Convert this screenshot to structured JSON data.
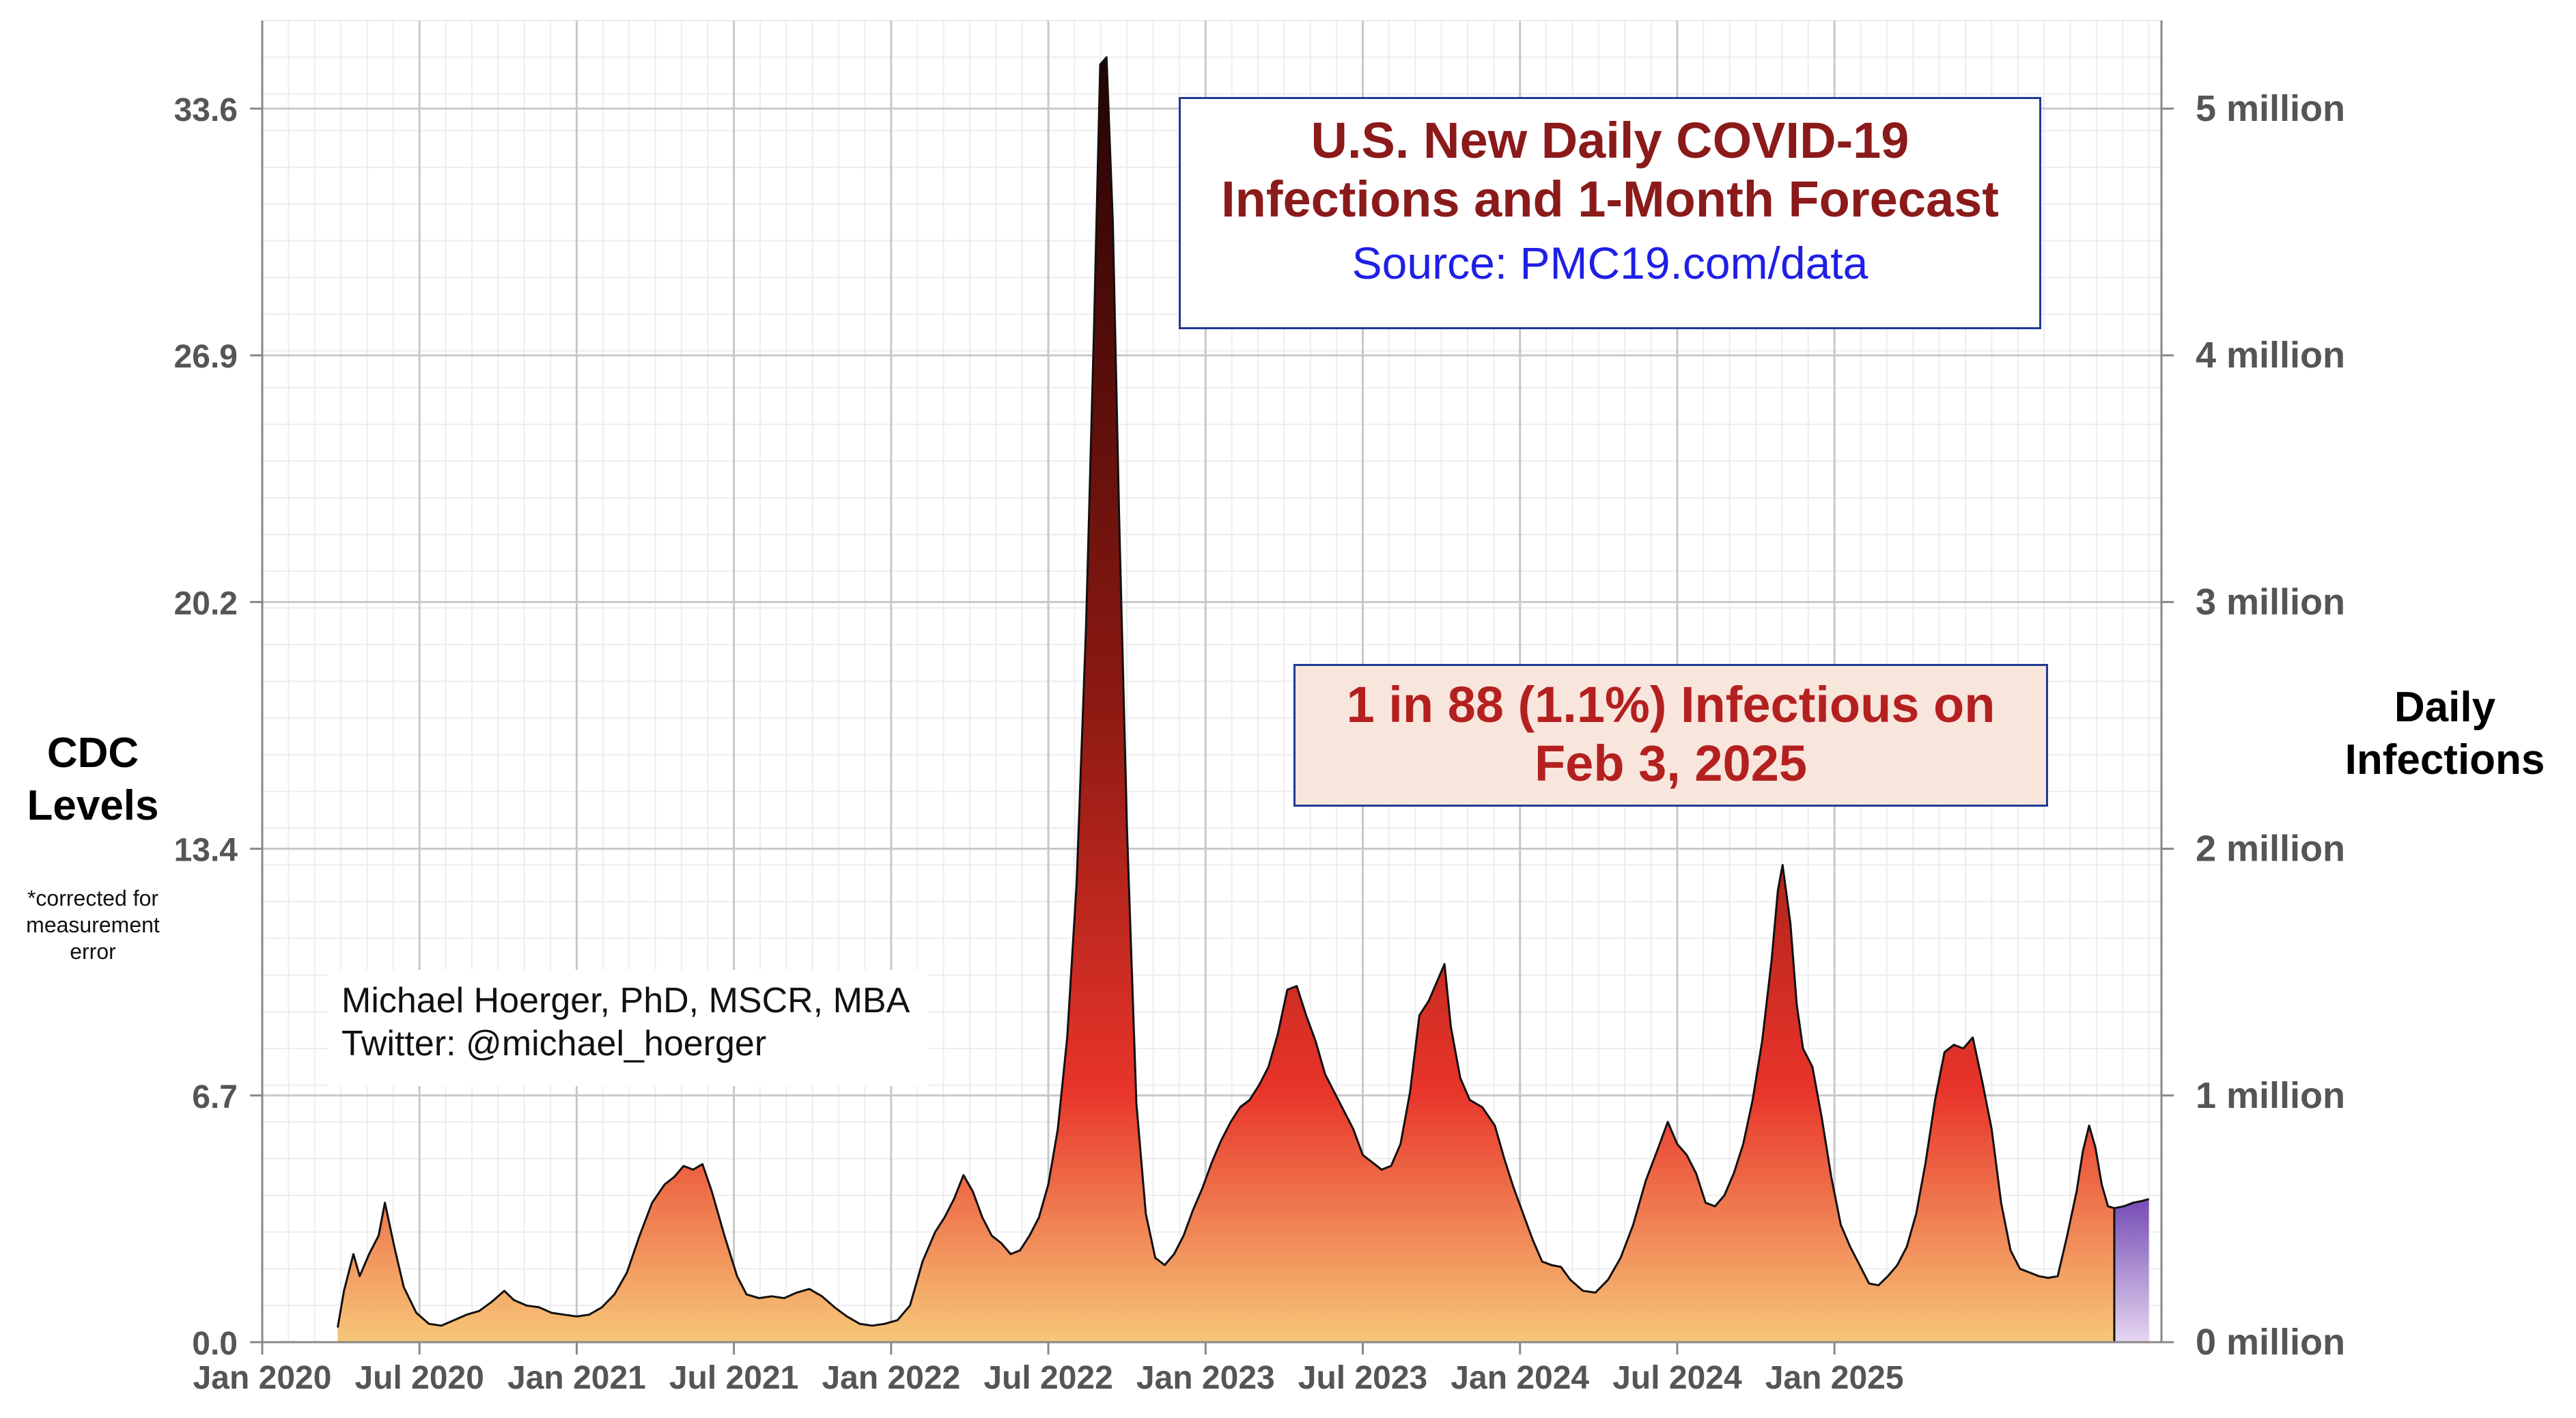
{
  "title": {
    "line1": "U.S. New Daily COVID-19",
    "line2": "Infections and 1-Month Forecast",
    "source": "Source: PMC19.com/data"
  },
  "callout": {
    "line1": "1 in 88 (1.1%) Infectious on",
    "line2": "Feb 3, 2025"
  },
  "author": {
    "name": "Michael Hoerger, PhD, MSCR, MBA",
    "twitter": "Twitter: @michael_hoerger"
  },
  "axes": {
    "left_label_line1": "CDC",
    "left_label_line2": "Levels",
    "left_note_line1": "*corrected for",
    "left_note_line2": "measurement",
    "left_note_line3": "error",
    "right_label_line1": "Daily",
    "right_label_line2": "Infections"
  },
  "colors": {
    "fill_top": "#2a0303",
    "fill_mid": "#e8342a",
    "fill_bottom": "#f7c778",
    "forecast_top": "#7a52b8",
    "forecast_bottom": "#e6d6f0",
    "box_border": "#1f3a93",
    "title_color": "#8b1a1a",
    "source_color": "#1f1fe6",
    "callout_bg": "#f8e5dc",
    "callout_text": "#b42020"
  },
  "chart_data": {
    "type": "area",
    "xlabel": "",
    "ylabel": "CDC Levels",
    "y2label": "Daily Infections",
    "x_ticks": [
      "Jan 2020",
      "Jul 2020",
      "Jan 2021",
      "Jul 2021",
      "Jan 2022",
      "Jul 2022",
      "Jan 2023",
      "Jul 2023",
      "Jan 2024",
      "Jul 2024",
      "Jan 2025"
    ],
    "y_ticks": [
      "0.0",
      "6.7",
      "13.4",
      "20.2",
      "26.9",
      "33.6"
    ],
    "y2_ticks": [
      "0 million",
      "1 million",
      "2 million",
      "3 million",
      "4 million",
      "5 million"
    ],
    "ylim": [
      0,
      36
    ],
    "y2lim": [
      0,
      5360000
    ],
    "grid": true,
    "x_unit": "years since Jan 2020",
    "series": [
      {
        "name": "Observed",
        "points": [
          [
            0.24,
            0.4
          ],
          [
            0.26,
            1.4
          ],
          [
            0.29,
            2.4
          ],
          [
            0.31,
            1.8
          ],
          [
            0.34,
            2.4
          ],
          [
            0.37,
            2.9
          ],
          [
            0.39,
            3.8
          ],
          [
            0.42,
            2.6
          ],
          [
            0.45,
            1.5
          ],
          [
            0.49,
            0.8
          ],
          [
            0.53,
            0.5
          ],
          [
            0.57,
            0.45
          ],
          [
            0.61,
            0.6
          ],
          [
            0.65,
            0.75
          ],
          [
            0.69,
            0.85
          ],
          [
            0.73,
            1.1
          ],
          [
            0.77,
            1.4
          ],
          [
            0.8,
            1.15
          ],
          [
            0.84,
            1.0
          ],
          [
            0.88,
            0.95
          ],
          [
            0.92,
            0.8
          ],
          [
            0.96,
            0.75
          ],
          [
            1.0,
            0.7
          ],
          [
            1.04,
            0.75
          ],
          [
            1.08,
            0.95
          ],
          [
            1.12,
            1.3
          ],
          [
            1.16,
            1.9
          ],
          [
            1.2,
            2.9
          ],
          [
            1.24,
            3.8
          ],
          [
            1.28,
            4.3
          ],
          [
            1.31,
            4.5
          ],
          [
            1.34,
            4.8
          ],
          [
            1.37,
            4.7
          ],
          [
            1.4,
            4.85
          ],
          [
            1.43,
            4.1
          ],
          [
            1.47,
            2.9
          ],
          [
            1.51,
            1.8
          ],
          [
            1.54,
            1.3
          ],
          [
            1.58,
            1.2
          ],
          [
            1.62,
            1.25
          ],
          [
            1.66,
            1.2
          ],
          [
            1.7,
            1.35
          ],
          [
            1.74,
            1.45
          ],
          [
            1.78,
            1.25
          ],
          [
            1.82,
            0.95
          ],
          [
            1.86,
            0.7
          ],
          [
            1.9,
            0.5
          ],
          [
            1.94,
            0.45
          ],
          [
            1.98,
            0.5
          ],
          [
            2.02,
            0.6
          ],
          [
            2.06,
            1.0
          ],
          [
            2.1,
            2.2
          ],
          [
            2.14,
            3.0
          ],
          [
            2.17,
            3.4
          ],
          [
            2.2,
            3.9
          ],
          [
            2.23,
            4.55
          ],
          [
            2.26,
            4.1
          ],
          [
            2.29,
            3.4
          ],
          [
            2.32,
            2.9
          ],
          [
            2.35,
            2.7
          ],
          [
            2.38,
            2.4
          ],
          [
            2.41,
            2.5
          ],
          [
            2.44,
            2.9
          ],
          [
            2.47,
            3.4
          ],
          [
            2.5,
            4.3
          ],
          [
            2.53,
            5.8
          ],
          [
            2.56,
            8.3
          ],
          [
            2.59,
            12.5
          ],
          [
            2.62,
            19.5
          ],
          [
            2.645,
            27.5
          ],
          [
            2.665,
            34.8
          ],
          [
            2.685,
            35.0
          ],
          [
            2.705,
            30.5
          ],
          [
            2.725,
            22.5
          ],
          [
            2.75,
            14.0
          ],
          [
            2.78,
            6.5
          ],
          [
            2.81,
            3.5
          ],
          [
            2.84,
            2.3
          ],
          [
            2.87,
            2.1
          ],
          [
            2.9,
            2.4
          ],
          [
            2.93,
            2.9
          ],
          [
            2.96,
            3.6
          ],
          [
            2.99,
            4.2
          ],
          [
            3.02,
            4.9
          ],
          [
            3.05,
            5.5
          ],
          [
            3.08,
            6.0
          ],
          [
            3.11,
            6.4
          ],
          [
            3.14,
            6.6
          ],
          [
            3.17,
            7.0
          ],
          [
            3.2,
            7.5
          ],
          [
            3.23,
            8.4
          ],
          [
            3.26,
            9.6
          ],
          [
            3.29,
            9.7
          ],
          [
            3.32,
            8.9
          ],
          [
            3.35,
            8.2
          ],
          [
            3.38,
            7.3
          ],
          [
            3.41,
            6.8
          ],
          [
            3.44,
            6.3
          ],
          [
            3.47,
            5.8
          ],
          [
            3.5,
            5.1
          ],
          [
            3.53,
            4.9
          ],
          [
            3.56,
            4.7
          ],
          [
            3.59,
            4.8
          ],
          [
            3.62,
            5.4
          ],
          [
            3.65,
            6.8
          ],
          [
            3.68,
            8.9
          ],
          [
            3.71,
            9.3
          ],
          [
            3.74,
            9.9
          ],
          [
            3.76,
            10.3
          ],
          [
            3.78,
            8.6
          ],
          [
            3.81,
            7.2
          ],
          [
            3.84,
            6.6
          ],
          [
            3.88,
            6.4
          ],
          [
            3.92,
            5.9
          ],
          [
            3.95,
            5.0
          ],
          [
            3.98,
            4.2
          ],
          [
            4.01,
            3.5
          ],
          [
            4.04,
            2.8
          ],
          [
            4.07,
            2.2
          ],
          [
            4.1,
            2.1
          ],
          [
            4.13,
            2.05
          ],
          [
            4.16,
            1.7
          ],
          [
            4.2,
            1.4
          ],
          [
            4.24,
            1.35
          ],
          [
            4.28,
            1.7
          ],
          [
            4.32,
            2.3
          ],
          [
            4.36,
            3.2
          ],
          [
            4.4,
            4.4
          ],
          [
            4.44,
            5.3
          ],
          [
            4.47,
            6.0
          ],
          [
            4.5,
            5.4
          ],
          [
            4.53,
            5.1
          ],
          [
            4.56,
            4.6
          ],
          [
            4.59,
            3.8
          ],
          [
            4.62,
            3.7
          ],
          [
            4.65,
            4.0
          ],
          [
            4.68,
            4.6
          ],
          [
            4.71,
            5.4
          ],
          [
            4.74,
            6.6
          ],
          [
            4.77,
            8.2
          ],
          [
            4.8,
            10.4
          ],
          [
            4.82,
            12.3
          ],
          [
            4.835,
            13.0
          ],
          [
            4.86,
            11.4
          ],
          [
            4.88,
            9.2
          ],
          [
            4.9,
            8.0
          ],
          [
            4.93,
            7.5
          ],
          [
            4.96,
            6.1
          ],
          [
            4.99,
            4.5
          ],
          [
            5.02,
            3.2
          ],
          [
            5.05,
            2.6
          ],
          [
            5.08,
            2.1
          ],
          [
            5.11,
            1.6
          ],
          [
            5.14,
            1.55
          ],
          [
            5.17,
            1.8
          ],
          [
            5.2,
            2.1
          ],
          [
            5.23,
            2.6
          ],
          [
            5.26,
            3.5
          ],
          [
            5.29,
            4.9
          ],
          [
            5.32,
            6.6
          ],
          [
            5.35,
            7.9
          ],
          [
            5.38,
            8.1
          ],
          [
            5.41,
            8.0
          ],
          [
            5.44,
            8.3
          ],
          [
            5.47,
            7.1
          ],
          [
            5.5,
            5.8
          ],
          [
            5.53,
            3.8
          ],
          [
            5.56,
            2.5
          ],
          [
            5.59,
            2.0
          ],
          [
            5.62,
            1.9
          ],
          [
            5.65,
            1.8
          ],
          [
            5.68,
            1.75
          ],
          [
            5.71,
            1.8
          ],
          [
            5.74,
            2.9
          ],
          [
            5.77,
            4.1
          ],
          [
            5.79,
            5.2
          ],
          [
            5.81,
            5.9
          ],
          [
            5.83,
            5.3
          ],
          [
            5.85,
            4.3
          ],
          [
            5.87,
            3.7
          ],
          [
            5.89,
            3.65
          ]
        ]
      },
      {
        "name": "Forecast",
        "points": [
          [
            5.89,
            3.65
          ],
          [
            5.92,
            3.7
          ],
          [
            5.95,
            3.8
          ],
          [
            5.98,
            3.85
          ],
          [
            6.0,
            3.9
          ]
        ]
      }
    ]
  }
}
